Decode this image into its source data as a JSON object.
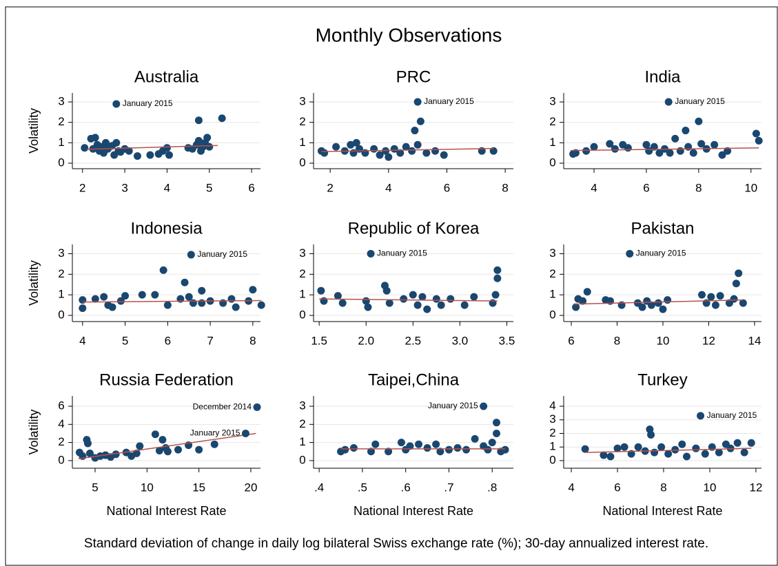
{
  "title": "Monthly Observations",
  "note": "Standard deviation of change in daily log bilateral Swiss exchange rate (%); 30-day annualized interest rate.",
  "chart_data": [
    {
      "type": "scatter",
      "title": "Australia",
      "ylabel": "Volatility",
      "color": "#1a476f",
      "line_color": "#b5524a",
      "grid": true,
      "x": [
        2.05,
        2.2,
        2.25,
        2.3,
        2.35,
        2.4,
        2.45,
        2.5,
        2.55,
        2.6,
        2.7,
        2.75,
        2.8,
        2.85,
        2.9,
        3.0,
        3.1,
        3.3,
        3.6,
        3.8,
        3.9,
        4.0,
        4.05,
        4.5,
        4.6,
        4.7,
        4.75,
        4.8,
        4.85,
        4.9,
        4.95,
        5.0,
        4.75,
        5.3
      ],
      "values": [
        0.75,
        1.2,
        0.7,
        1.25,
        0.9,
        0.6,
        0.8,
        0.5,
        1.0,
        0.7,
        0.85,
        0.4,
        1.0,
        0.6,
        0.55,
        0.7,
        0.6,
        0.35,
        0.4,
        0.45,
        0.6,
        0.75,
        0.4,
        0.75,
        0.7,
        0.9,
        1.1,
        0.6,
        0.8,
        1.0,
        1.25,
        0.8,
        2.1,
        2.2
      ],
      "trend": {
        "x": [
          2.1,
          5.2
        ],
        "values": [
          0.68,
          0.87
        ]
      },
      "annotations": [
        {
          "text": "January 2015",
          "x": 2.8,
          "y": 2.9
        }
      ],
      "xlim": [
        1.76,
        6.21
      ],
      "ylim": [
        -0.27,
        3.44
      ],
      "xticks": [
        2,
        3,
        4,
        5,
        6
      ],
      "yticks": [
        0,
        1,
        2,
        3
      ]
    },
    {
      "type": "scatter",
      "title": "PRC",
      "color": "#1a476f",
      "line_color": "#b5524a",
      "grid": true,
      "x": [
        1.7,
        1.8,
        2.2,
        2.5,
        2.7,
        2.8,
        2.9,
        3.0,
        3.2,
        3.5,
        3.7,
        3.9,
        4.0,
        4.2,
        4.4,
        4.6,
        4.8,
        4.9,
        5.0,
        5.1,
        5.3,
        5.6,
        5.9,
        7.2,
        7.6
      ],
      "values": [
        0.6,
        0.5,
        0.8,
        0.6,
        0.9,
        0.5,
        1.0,
        0.7,
        0.5,
        0.7,
        0.4,
        0.6,
        0.3,
        0.7,
        0.5,
        0.8,
        0.6,
        1.6,
        0.9,
        2.05,
        0.5,
        0.6,
        0.4,
        0.6,
        0.6
      ],
      "trend": {
        "x": [
          1.7,
          7.6
        ],
        "values": [
          0.57,
          0.72
        ]
      },
      "annotations": [
        {
          "text": "January 2015",
          "x": 5.0,
          "y": 3.0
        }
      ],
      "xlim": [
        1.43,
        8.28
      ],
      "ylim": [
        -0.27,
        3.44
      ],
      "xticks": [
        2,
        4,
        6,
        8
      ],
      "yticks": [
        0,
        1,
        2,
        3
      ]
    },
    {
      "type": "scatter",
      "title": "India",
      "color": "#1a476f",
      "line_color": "#b5524a",
      "grid": true,
      "x": [
        3.2,
        3.3,
        3.7,
        4.0,
        4.6,
        4.8,
        5.1,
        5.3,
        6.0,
        6.1,
        6.3,
        6.5,
        6.7,
        6.9,
        7.1,
        7.3,
        7.5,
        7.6,
        7.8,
        8.0,
        8.1,
        8.3,
        8.6,
        8.9,
        9.1,
        10.2,
        10.3
      ],
      "values": [
        0.45,
        0.5,
        0.6,
        0.8,
        0.95,
        0.7,
        0.9,
        0.75,
        0.9,
        0.6,
        0.8,
        0.5,
        0.7,
        0.5,
        1.2,
        0.6,
        1.6,
        0.8,
        0.5,
        2.05,
        0.95,
        0.7,
        0.9,
        0.4,
        0.6,
        1.45,
        1.1
      ],
      "trend": {
        "x": [
          3.1,
          10.3
        ],
        "values": [
          0.62,
          0.75
        ]
      },
      "annotations": [
        {
          "text": "January 2015",
          "x": 6.85,
          "y": 3.0
        }
      ],
      "xlim": [
        2.84,
        10.4
      ],
      "ylim": [
        -0.27,
        3.44
      ],
      "xticks": [
        4,
        6,
        8,
        10
      ],
      "yticks": [
        0,
        1,
        2,
        3
      ]
    },
    {
      "type": "scatter",
      "title": "Indonesia",
      "ylabel": "Volatility",
      "color": "#1a476f",
      "line_color": "#b5524a",
      "grid": true,
      "x": [
        4.0,
        4.0,
        4.3,
        4.5,
        4.6,
        4.7,
        4.9,
        5.0,
        5.4,
        5.7,
        5.9,
        6.0,
        6.3,
        6.4,
        6.5,
        6.6,
        6.8,
        6.8,
        7.0,
        7.3,
        7.5,
        7.6,
        7.9,
        8.0,
        8.2
      ],
      "values": [
        0.75,
        0.35,
        0.8,
        0.9,
        0.5,
        0.4,
        0.7,
        0.95,
        1.0,
        1.0,
        2.2,
        0.5,
        0.8,
        1.6,
        0.9,
        0.6,
        1.2,
        0.6,
        0.7,
        0.6,
        0.8,
        0.4,
        0.7,
        1.25,
        0.5
      ],
      "trend": {
        "x": [
          4.0,
          8.2
        ],
        "values": [
          0.65,
          0.72
        ]
      },
      "annotations": [
        {
          "text": "January 2015",
          "x": 6.55,
          "y": 2.95
        }
      ],
      "xlim": [
        3.76,
        8.18
      ],
      "ylim": [
        -0.3,
        3.45
      ],
      "xticks": [
        4,
        5,
        6,
        7,
        8
      ],
      "yticks": [
        0,
        1,
        2,
        3
      ]
    },
    {
      "type": "scatter",
      "title": "Republic of Korea",
      "color": "#1a476f",
      "line_color": "#b5524a",
      "grid": true,
      "x": [
        1.52,
        1.55,
        1.7,
        1.75,
        2.0,
        2.02,
        2.2,
        2.22,
        2.25,
        2.4,
        2.5,
        2.55,
        2.6,
        2.65,
        2.75,
        2.8,
        2.9,
        3.05,
        3.15,
        3.35,
        3.38,
        3.4,
        3.4
      ],
      "values": [
        1.2,
        0.7,
        0.95,
        0.6,
        0.7,
        0.4,
        1.45,
        1.2,
        0.6,
        0.8,
        1.0,
        0.5,
        0.9,
        0.3,
        0.8,
        0.5,
        0.8,
        0.5,
        0.9,
        0.6,
        1.0,
        1.8,
        2.2
      ],
      "trend": {
        "x": [
          1.5,
          3.4
        ],
        "values": [
          0.8,
          0.7
        ]
      },
      "annotations": [
        {
          "text": "January 2015",
          "x": 2.05,
          "y": 3.0
        }
      ],
      "xlim": [
        1.44,
        3.57
      ],
      "ylim": [
        -0.3,
        3.45
      ],
      "xticks": [
        1.5,
        {
          "value": 2,
          "label": "2.0"
        },
        2.5,
        {
          "value": 3,
          "label": "3.0"
        },
        3.5
      ],
      "yticks": [
        0,
        1,
        2,
        3
      ]
    },
    {
      "type": "scatter",
      "title": "Pakistan",
      "color": "#1a476f",
      "line_color": "#b5524a",
      "grid": true,
      "x": [
        6.2,
        6.3,
        6.5,
        6.7,
        7.5,
        7.7,
        8.2,
        8.9,
        9.1,
        9.3,
        9.5,
        9.8,
        10.0,
        10.2,
        11.7,
        11.9,
        12.1,
        12.3,
        12.5,
        12.9,
        13.1,
        13.2,
        13.3,
        13.5
      ],
      "values": [
        0.4,
        0.8,
        0.7,
        1.15,
        0.75,
        0.7,
        0.5,
        0.6,
        0.4,
        0.7,
        0.5,
        0.6,
        0.3,
        0.75,
        1.0,
        0.6,
        0.9,
        0.5,
        0.95,
        0.6,
        0.8,
        1.55,
        2.05,
        0.6
      ],
      "trend": {
        "x": [
          6.1,
          13.5
        ],
        "values": [
          0.55,
          0.75
        ]
      },
      "annotations": [
        {
          "text": "January 2015",
          "x": 8.55,
          "y": 3.0
        }
      ],
      "xlim": [
        5.67,
        14.3
      ],
      "ylim": [
        -0.3,
        3.45
      ],
      "xticks": [
        6,
        8,
        10,
        12,
        14
      ],
      "yticks": [
        0,
        1,
        2,
        3
      ]
    },
    {
      "type": "scatter",
      "title": "Russia Federation",
      "ylabel": "Volatility",
      "xlabel": "National Interest Rate",
      "color": "#1a476f",
      "line_color": "#b5524a",
      "grid": true,
      "x": [
        3.5,
        3.8,
        4.2,
        4.3,
        4.5,
        5.0,
        5.5,
        6.0,
        6.5,
        7.0,
        8.0,
        8.5,
        9.0,
        9.3,
        10.8,
        11.2,
        11.5,
        11.8,
        12.0,
        13.0,
        14.0,
        15.0,
        16.5
      ],
      "values": [
        0.9,
        0.5,
        2.3,
        1.9,
        0.8,
        0.3,
        0.5,
        0.6,
        0.4,
        0.7,
        0.9,
        0.5,
        0.8,
        1.6,
        2.9,
        1.1,
        2.3,
        1.4,
        1.0,
        1.2,
        1.7,
        1.2,
        1.8
      ],
      "trend": {
        "x": [
          3.4,
          20.5
        ],
        "values": [
          0.2,
          3.0
        ]
      },
      "annotations": [
        {
          "text": "December 2014",
          "x": 20.6,
          "y": 5.9
        },
        {
          "text": "January 2015",
          "x": 19.5,
          "y": 3.0
        }
      ],
      "xlim": [
        2.81,
        20.93
      ],
      "ylim": [
        -0.84,
        7.14
      ],
      "xticks": [
        5,
        10,
        15,
        20
      ],
      "yticks": [
        0,
        2,
        4,
        6
      ]
    },
    {
      "type": "scatter",
      "title": "Taipei,China",
      "xlabel": "National Interest Rate",
      "color": "#1a476f",
      "line_color": "#b5524a",
      "grid": true,
      "x": [
        0.45,
        0.46,
        0.48,
        0.52,
        0.53,
        0.56,
        0.59,
        0.6,
        0.61,
        0.63,
        0.65,
        0.67,
        0.68,
        0.7,
        0.72,
        0.74,
        0.76,
        0.78,
        0.79,
        0.8,
        0.81,
        0.81,
        0.82,
        0.83
      ],
      "values": [
        0.5,
        0.6,
        0.7,
        0.5,
        0.9,
        0.5,
        1.0,
        0.6,
        0.8,
        0.9,
        0.7,
        0.9,
        0.5,
        0.6,
        0.7,
        0.6,
        1.2,
        0.8,
        0.6,
        1.0,
        1.5,
        2.1,
        0.5,
        0.6
      ],
      "trend": {
        "x": [
          0.45,
          0.83
        ],
        "values": [
          0.65,
          0.65
        ]
      },
      "annotations": [
        {
          "text": "January 2015",
          "x": 0.78,
          "y": 3.0
        }
      ],
      "xlim": [
        0.387,
        0.849
      ],
      "ylim": [
        -0.42,
        3.57
      ],
      "xticks": [
        {
          "value": 0.4,
          "label": ".4"
        },
        {
          "value": 0.5,
          "label": ".5"
        },
        {
          "value": 0.6,
          "label": ".6"
        },
        {
          "value": 0.7,
          "label": ".7"
        },
        {
          "value": 0.8,
          "label": ".8"
        }
      ],
      "yticks": [
        0,
        1,
        2,
        3
      ]
    },
    {
      "type": "scatter",
      "title": "Turkey",
      "xlabel": "National Interest Rate",
      "color": "#1a476f",
      "line_color": "#b5524a",
      "grid": true,
      "x": [
        4.6,
        5.4,
        5.7,
        6.0,
        6.3,
        6.6,
        6.9,
        7.2,
        7.4,
        7.45,
        7.6,
        7.9,
        8.2,
        8.5,
        8.8,
        9.0,
        9.4,
        9.8,
        10.1,
        10.4,
        10.7,
        10.9,
        11.2,
        11.5,
        11.8
      ],
      "values": [
        0.85,
        0.4,
        0.3,
        0.9,
        1.0,
        0.5,
        1.0,
        0.7,
        2.3,
        1.9,
        0.6,
        1.0,
        0.5,
        0.8,
        1.2,
        0.3,
        0.9,
        0.5,
        1.0,
        0.6,
        1.2,
        0.9,
        1.3,
        0.6,
        1.3
      ],
      "trend": {
        "x": [
          4.6,
          11.8
        ],
        "values": [
          0.6,
          0.9
        ]
      },
      "annotations": [
        {
          "text": "January 2015",
          "x": 9.6,
          "y": 3.3
        }
      ],
      "xlim": [
        3.67,
        12.24
      ],
      "ylim": [
        -0.56,
        4.76
      ],
      "xticks": [
        4,
        6,
        8,
        10,
        12
      ],
      "yticks": [
        0,
        1,
        2,
        3,
        4
      ]
    }
  ]
}
